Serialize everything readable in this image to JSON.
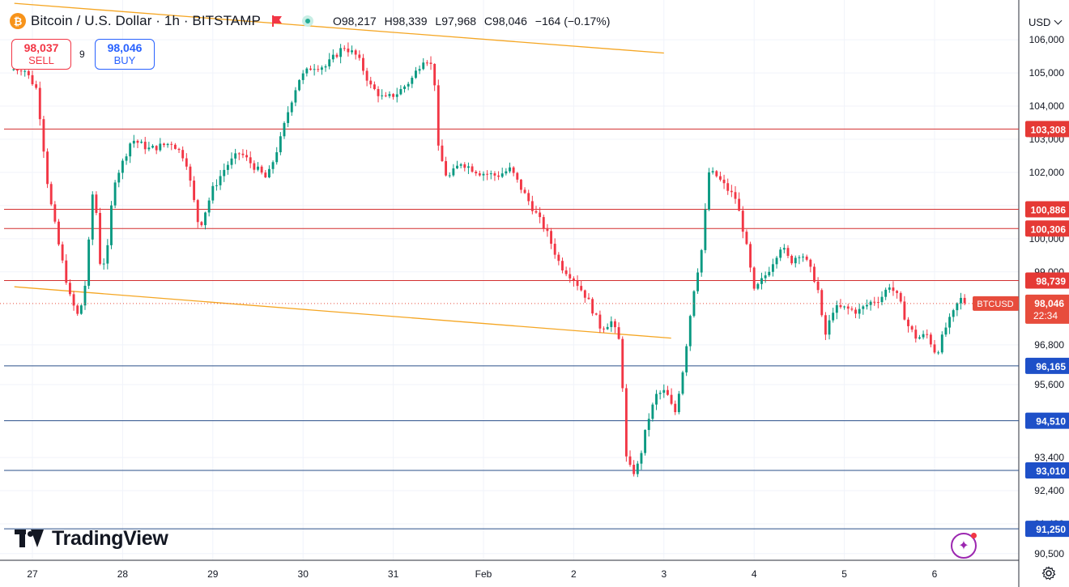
{
  "header": {
    "logo_letter": "₿",
    "title": "Bitcoin / U.S. Dollar · 1h · BITSTAMP",
    "ohlc": {
      "o_label": "O",
      "o": "98,217",
      "h_label": "H",
      "h": "98,339",
      "l_label": "L",
      "l": "97,968",
      "c_label": "C",
      "c": "98,046",
      "change": "−164 (−0.17%)"
    }
  },
  "trade": {
    "sell_price": "98,037",
    "sell_label": "SELL",
    "spread": "9",
    "buy_price": "98,046",
    "buy_label": "BUY"
  },
  "currency": "USD",
  "branding": "TradingView",
  "colors": {
    "up": "#089981",
    "down": "#f23645",
    "resistance": "#d32f2f",
    "support": "#2a4f8a",
    "channel": "#f5a623",
    "label_red": "#e53935",
    "label_blue": "#1e50c8",
    "price_tag": "#e74c3c"
  },
  "chart_data": {
    "type": "candlestick",
    "timeframe": "1h",
    "ylim": [
      90300,
      107200
    ],
    "y_ticks": [
      "106,000",
      "105,000",
      "104,000",
      "103,000",
      "102,000",
      "101,000",
      "100,000",
      "99,000",
      "96,800",
      "95,600",
      "93,400",
      "92,400",
      "91,400",
      "90,500"
    ],
    "x_ticks": [
      "27",
      "28",
      "29",
      "30",
      "31",
      "Feb",
      "2",
      "3",
      "4",
      "5",
      "6"
    ],
    "resistance_levels": [
      {
        "value": 103308,
        "label": "103,308"
      },
      {
        "value": 100886,
        "label": "100,886"
      },
      {
        "value": 100306,
        "label": "100,306"
      },
      {
        "value": 98739,
        "label": "98,739"
      }
    ],
    "support_levels": [
      {
        "value": 96165,
        "label": "96,165"
      },
      {
        "value": 94510,
        "label": "94,510"
      },
      {
        "value": 93010,
        "label": "93,010"
      },
      {
        "value": 91250,
        "label": "91,250"
      }
    ],
    "current_price": {
      "value": 98046,
      "symbol": "BTCUSD",
      "label": "98,046",
      "countdown": "22:34"
    },
    "trendlines": [
      {
        "x1_day": -0.2,
        "y1": 107100,
        "x2_day": 7.0,
        "y2": 105600
      },
      {
        "x1_day": -0.2,
        "y1": 98550,
        "x2_day": 7.08,
        "y2": 97000
      }
    ],
    "price_path": [
      [
        -0.25,
        105100
      ],
      [
        -0.1,
        105150
      ],
      [
        0.05,
        104500
      ],
      [
        0.18,
        101400
      ],
      [
        0.3,
        99700
      ],
      [
        0.42,
        98200
      ],
      [
        0.5,
        97700
      ],
      [
        0.57,
        98200
      ],
      [
        0.62,
        99700
      ],
      [
        0.68,
        101800
      ],
      [
        0.75,
        99300
      ],
      [
        0.82,
        99300
      ],
      [
        0.9,
        101700
      ],
      [
        1.0,
        102300
      ],
      [
        1.1,
        103000
      ],
      [
        1.3,
        102700
      ],
      [
        1.55,
        102900
      ],
      [
        1.7,
        102400
      ],
      [
        1.85,
        100300
      ],
      [
        2.0,
        101500
      ],
      [
        2.15,
        102200
      ],
      [
        2.3,
        102600
      ],
      [
        2.45,
        102200
      ],
      [
        2.6,
        101800
      ],
      [
        2.75,
        103000
      ],
      [
        2.85,
        104000
      ],
      [
        2.95,
        104800
      ],
      [
        3.1,
        105200
      ],
      [
        3.25,
        105200
      ],
      [
        3.45,
        105800
      ],
      [
        3.6,
        105500
      ],
      [
        3.75,
        104600
      ],
      [
        3.9,
        104200
      ],
      [
        4.05,
        104400
      ],
      [
        4.2,
        104800
      ],
      [
        4.35,
        105500
      ],
      [
        4.45,
        105100
      ],
      [
        4.5,
        102700
      ],
      [
        4.6,
        101800
      ],
      [
        4.75,
        102300
      ],
      [
        4.95,
        102000
      ],
      [
        5.15,
        101900
      ],
      [
        5.3,
        102100
      ],
      [
        5.4,
        101600
      ],
      [
        5.55,
        100900
      ],
      [
        5.7,
        100200
      ],
      [
        5.85,
        99200
      ],
      [
        6.0,
        98800
      ],
      [
        6.15,
        98200
      ],
      [
        6.3,
        97300
      ],
      [
        6.42,
        97500
      ],
      [
        6.52,
        96800
      ],
      [
        6.58,
        93400
      ],
      [
        6.65,
        92900
      ],
      [
        6.72,
        93200
      ],
      [
        6.82,
        94500
      ],
      [
        6.92,
        95300
      ],
      [
        7.02,
        95400
      ],
      [
        7.12,
        94700
      ],
      [
        7.22,
        96200
      ],
      [
        7.32,
        98300
      ],
      [
        7.42,
        99700
      ],
      [
        7.5,
        102000
      ],
      [
        7.58,
        101900
      ],
      [
        7.7,
        101500
      ],
      [
        7.8,
        101200
      ],
      [
        7.9,
        100000
      ],
      [
        8.0,
        98400
      ],
      [
        8.15,
        99000
      ],
      [
        8.3,
        99800
      ],
      [
        8.4,
        99300
      ],
      [
        8.52,
        99600
      ],
      [
        8.6,
        99200
      ],
      [
        8.7,
        98600
      ],
      [
        8.78,
        97000
      ],
      [
        8.88,
        97900
      ],
      [
        9.0,
        97900
      ],
      [
        9.15,
        97800
      ],
      [
        9.3,
        98100
      ],
      [
        9.4,
        98200
      ],
      [
        9.5,
        98600
      ],
      [
        9.6,
        98200
      ],
      [
        9.7,
        97400
      ],
      [
        9.8,
        97000
      ],
      [
        9.92,
        97100
      ],
      [
        10.02,
        96500
      ],
      [
        10.12,
        97300
      ],
      [
        10.2,
        97700
      ],
      [
        10.28,
        98200
      ],
      [
        10.35,
        98050
      ]
    ]
  }
}
